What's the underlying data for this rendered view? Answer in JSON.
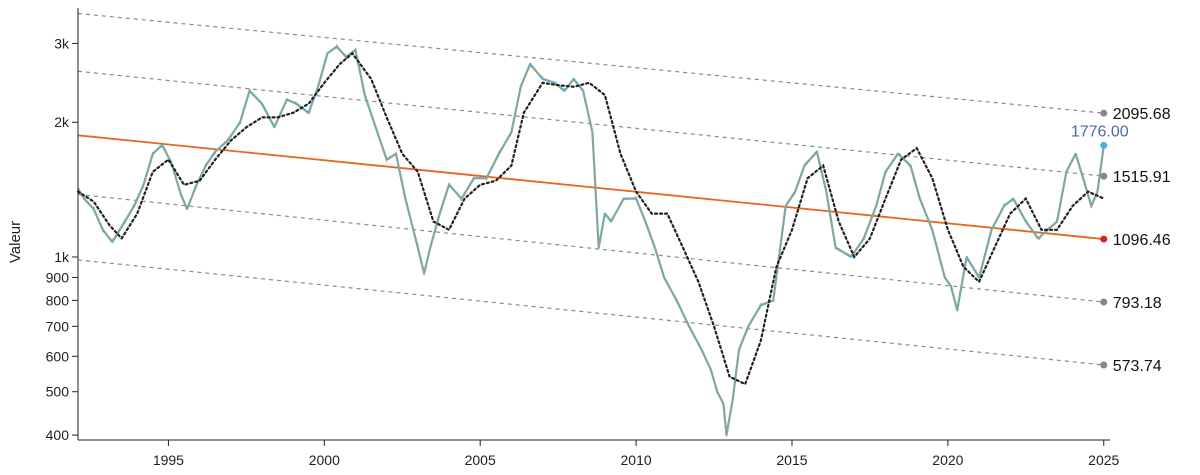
{
  "chart_data": {
    "type": "line",
    "title": "",
    "xlabel": "",
    "ylabel": "Valeur",
    "y_scale": "log",
    "xlim": [
      1992.1,
      2025.2
    ],
    "ylim": [
      390,
      3600
    ],
    "x_ticks": [
      {
        "value": 1995,
        "label": "1995"
      },
      {
        "value": 2000,
        "label": "2000"
      },
      {
        "value": 2005,
        "label": "2005"
      },
      {
        "value": 2010,
        "label": "2010"
      },
      {
        "value": 2015,
        "label": "2015"
      },
      {
        "value": 2020,
        "label": "2020"
      },
      {
        "value": 2025,
        "label": "2025"
      }
    ],
    "y_ticks": [
      {
        "value": 3000,
        "label": "3k"
      },
      {
        "value": 2000,
        "label": "2k"
      },
      {
        "value": 1000,
        "label": "1k"
      },
      {
        "value": 900,
        "label": "900"
      },
      {
        "value": 800,
        "label": "800"
      },
      {
        "value": 700,
        "label": "700"
      },
      {
        "value": 600,
        "label": "600"
      },
      {
        "value": 500,
        "label": "500"
      },
      {
        "value": 400,
        "label": "400"
      }
    ],
    "grid": false,
    "colors": {
      "price": "#45b5dc",
      "smooth": "#e0913a",
      "moving_average": "#222222",
      "regression": "#e8661c",
      "channel": "#8a8a8a",
      "marker_end": "#e02020",
      "marker_channel": "#888888",
      "last_value": "#4d6aa8"
    },
    "regression_line": {
      "start": [
        1992.1,
        1870
      ],
      "end": [
        2025.0,
        1096.46
      ]
    },
    "channel_lines": [
      {
        "start": [
          1992.1,
          3500
        ],
        "end": [
          2025.0,
          2095.68
        ]
      },
      {
        "start": [
          1992.1,
          2600
        ],
        "end": [
          2025.0,
          1515.91
        ]
      },
      {
        "start": [
          1992.1,
          1380
        ],
        "end": [
          2025.0,
          793.18
        ]
      },
      {
        "start": [
          1992.1,
          985
        ],
        "end": [
          2025.0,
          573.74
        ]
      }
    ],
    "end_labels": [
      {
        "value": 2095.68,
        "label": "2095.68",
        "kind": "channel"
      },
      {
        "value": 1515.91,
        "label": "1515.91",
        "kind": "channel"
      },
      {
        "value": 1096.46,
        "label": "1096.46",
        "kind": "regression"
      },
      {
        "value": 793.18,
        "label": "793.18",
        "kind": "channel"
      },
      {
        "value": 573.74,
        "label": "573.74",
        "kind": "channel"
      }
    ],
    "last_value": {
      "x": 2025.0,
      "value": 1776.0,
      "label": "1776.00"
    },
    "series": [
      {
        "role": "price",
        "x": [
          1992.1,
          1992.3,
          1992.6,
          1992.9,
          1993.2,
          1993.6,
          1993.9,
          1994.2,
          1994.5,
          1994.8,
          1995.1,
          1995.4,
          1995.6,
          1995.9,
          1996.2,
          1996.5,
          1996.9,
          1997.3,
          1997.6,
          1998.0,
          1998.4,
          1998.8,
          1999.1,
          1999.5,
          1999.8,
          2000.1,
          2000.4,
          2000.7,
          2001.0,
          2001.3,
          2001.7,
          2002.0,
          2002.3,
          2002.6,
          2003.0,
          2003.2,
          2003.4,
          2003.7,
          2004.0,
          2004.4,
          2004.8,
          2005.2,
          2005.6,
          2006.0,
          2006.3,
          2006.6,
          2007.0,
          2007.4,
          2007.7,
          2008.0,
          2008.3,
          2008.6,
          2008.8,
          2009.0,
          2009.2,
          2009.6,
          2010.0,
          2010.3,
          2010.6,
          2010.9,
          2011.3,
          2011.7,
          2012.1,
          2012.4,
          2012.6,
          2012.8,
          2012.9,
          2013.1,
          2013.3,
          2013.6,
          2014.0,
          2014.4,
          2014.8,
          2015.1,
          2015.4,
          2015.8,
          2016.1,
          2016.4,
          2016.9,
          2017.3,
          2017.7,
          2018.0,
          2018.4,
          2018.8,
          2019.1,
          2019.5,
          2019.9,
          2020.1,
          2020.3,
          2020.6,
          2021.0,
          2021.4,
          2021.8,
          2022.1,
          2022.5,
          2022.9,
          2023.2,
          2023.5,
          2023.8,
          2024.1,
          2024.4,
          2024.6,
          2024.8,
          2025.0
        ],
        "values": [
          1420,
          1350,
          1280,
          1150,
          1080,
          1200,
          1300,
          1450,
          1700,
          1780,
          1620,
          1380,
          1280,
          1450,
          1600,
          1720,
          1820,
          2000,
          2350,
          2200,
          1950,
          2250,
          2200,
          2100,
          2400,
          2850,
          2950,
          2800,
          2900,
          2300,
          1900,
          1650,
          1700,
          1350,
          1050,
          920,
          1050,
          1250,
          1450,
          1350,
          1500,
          1500,
          1700,
          1900,
          2400,
          2700,
          2500,
          2450,
          2350,
          2500,
          2350,
          1900,
          1050,
          1250,
          1200,
          1350,
          1350,
          1200,
          1050,
          900,
          800,
          700,
          620,
          560,
          500,
          470,
          400,
          480,
          620,
          700,
          780,
          800,
          1300,
          1400,
          1600,
          1720,
          1400,
          1050,
          1000,
          1100,
          1300,
          1550,
          1700,
          1600,
          1350,
          1150,
          900,
          860,
          760,
          1000,
          900,
          1150,
          1300,
          1350,
          1200,
          1100,
          1150,
          1200,
          1550,
          1700,
          1450,
          1300,
          1400,
          1776
        ]
      },
      {
        "role": "moving_average",
        "x": [
          1992.1,
          1992.6,
          1993.1,
          1993.5,
          1994.0,
          1994.5,
          1995.0,
          1995.5,
          1996.0,
          1996.5,
          1997.0,
          1997.5,
          1998.0,
          1998.5,
          1999.0,
          1999.5,
          2000.0,
          2000.5,
          2000.9,
          2001.5,
          2002.0,
          2002.5,
          2003.0,
          2003.5,
          2004.0,
          2004.5,
          2005.0,
          2005.5,
          2006.0,
          2006.4,
          2007.0,
          2007.5,
          2008.0,
          2008.5,
          2009.0,
          2009.5,
          2010.0,
          2010.5,
          2011.0,
          2011.5,
          2012.0,
          2012.5,
          2013.0,
          2013.5,
          2014.0,
          2014.5,
          2015.0,
          2015.5,
          2016.0,
          2016.5,
          2017.0,
          2017.5,
          2018.0,
          2018.5,
          2019.0,
          2019.5,
          2020.0,
          2020.5,
          2021.0,
          2021.5,
          2022.0,
          2022.5,
          2023.0,
          2023.5,
          2024.0,
          2024.5,
          2025.0
        ],
        "values": [
          1400,
          1330,
          1180,
          1100,
          1250,
          1550,
          1650,
          1450,
          1480,
          1650,
          1820,
          1950,
          2050,
          2050,
          2100,
          2200,
          2450,
          2700,
          2850,
          2500,
          2050,
          1700,
          1550,
          1200,
          1150,
          1350,
          1450,
          1480,
          1600,
          2100,
          2450,
          2420,
          2400,
          2450,
          2300,
          1700,
          1400,
          1250,
          1250,
          1050,
          880,
          700,
          540,
          520,
          650,
          950,
          1150,
          1500,
          1600,
          1200,
          1000,
          1100,
          1350,
          1650,
          1750,
          1500,
          1150,
          950,
          880,
          1050,
          1250,
          1350,
          1150,
          1150,
          1300,
          1400,
          1350
        ]
      }
    ]
  }
}
